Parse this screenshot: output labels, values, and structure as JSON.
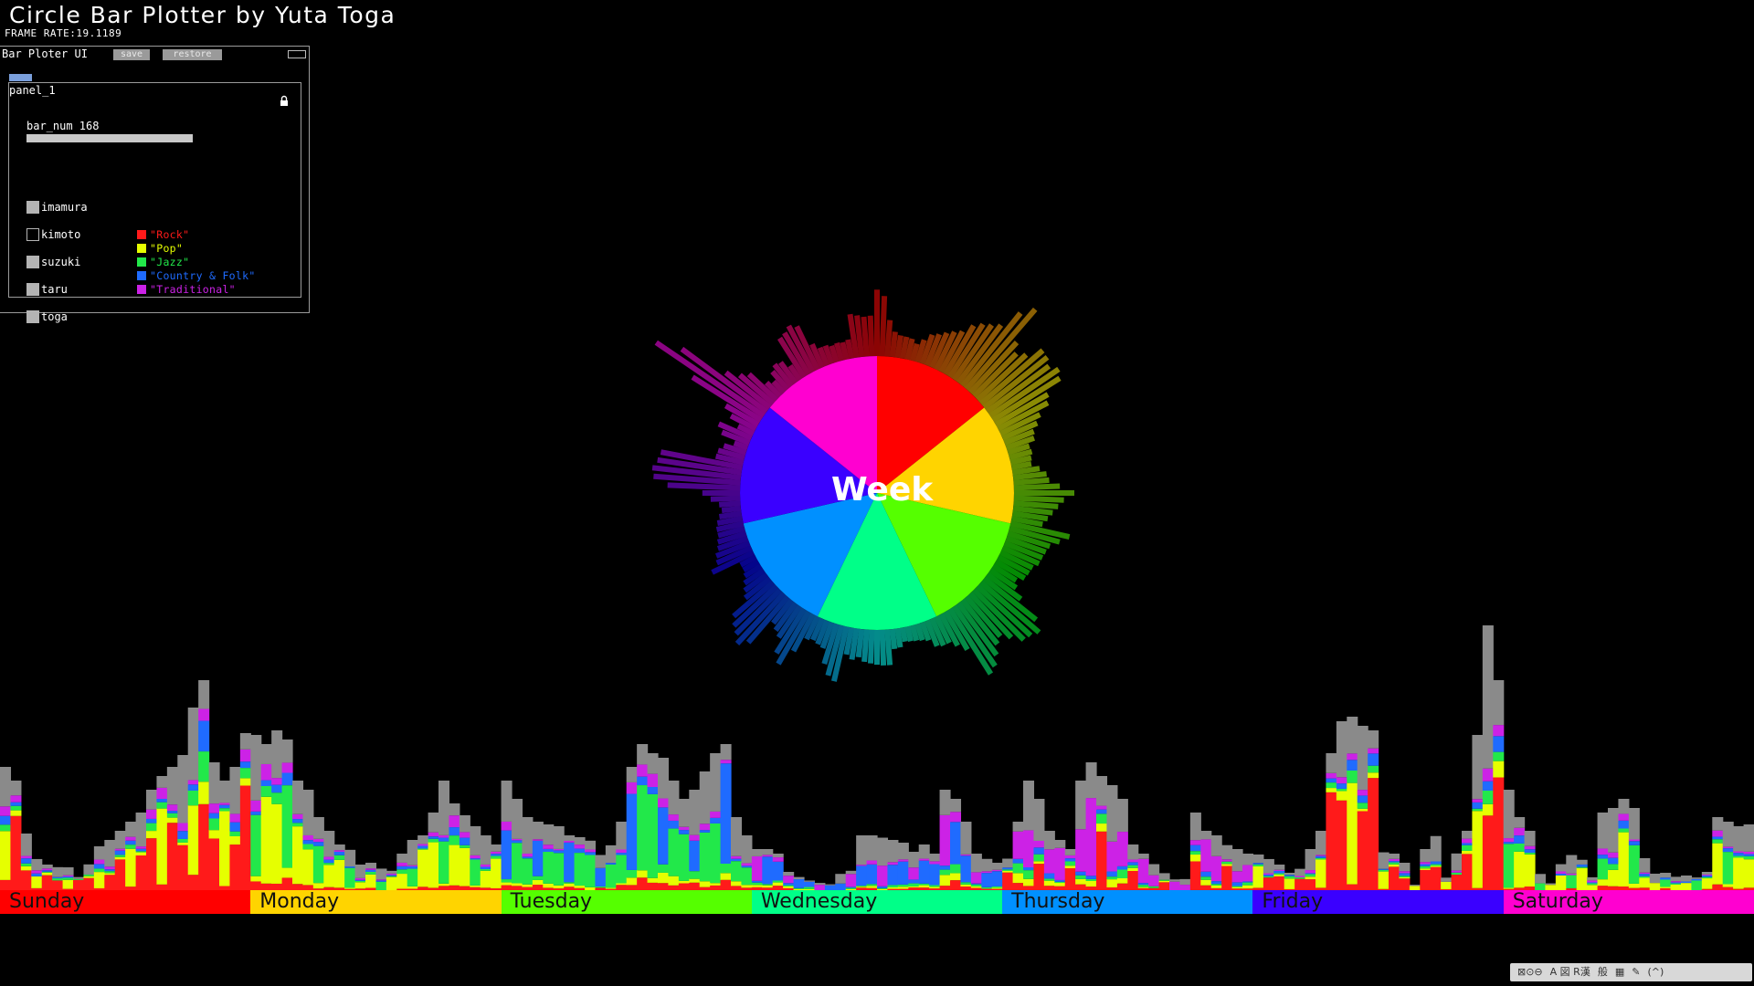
{
  "app": {
    "title": "Circle  Bar  Plotter  by  Yuta  Toga",
    "frame_rate": "FRAME RATE:19.1189"
  },
  "ui_window": {
    "title": "Bar Ploter UI",
    "save_label": "save",
    "restore_label": "restore",
    "panel": {
      "label": "panel_1",
      "slider_label": "bar_num 168",
      "slider_value": 168,
      "slider_fill_fraction": 1.0,
      "checkboxes": [
        {
          "label": "imamura",
          "checked": true
        },
        {
          "label": "kimoto",
          "checked": false
        },
        {
          "label": "suzuki",
          "checked": true
        },
        {
          "label": "taru",
          "checked": true
        },
        {
          "label": "toga",
          "checked": true
        }
      ],
      "legend": [
        {
          "label": "\"Rock\"",
          "color": "#ff1a1a"
        },
        {
          "label": "\"Pop\"",
          "color": "#e6ff00"
        },
        {
          "label": "\"Jazz\"",
          "color": "#22e84a"
        },
        {
          "label": "\"Country & Folk\"",
          "color": "#1f6bff"
        },
        {
          "label": "\"Traditional\"",
          "color": "#cc22e6"
        }
      ]
    }
  },
  "center_label": "Week",
  "days": [
    {
      "label": "Sunday",
      "color": "#ff0000"
    },
    {
      "label": "Monday",
      "color": "#ffd400"
    },
    {
      "label": "Tuesday",
      "color": "#55ff00"
    },
    {
      "label": "Wednesday",
      "color": "#00ff88"
    },
    {
      "label": "Thursday",
      "color": "#0090ff"
    },
    {
      "label": "Friday",
      "color": "#3a00ff"
    },
    {
      "label": "Saturday",
      "color": "#ff00d0"
    }
  ],
  "chart_data": {
    "type": "bar",
    "stacked": true,
    "x_unit": "hour of week",
    "bar_count": 168,
    "category_colors": {
      "Rock": "#ff1a1a",
      "Pop": "#e6ff00",
      "Jazz": "#22e84a",
      "Country & Folk": "#1f6bff",
      "Traditional": "#cc22e6",
      "Other": "#8a8a8a"
    },
    "totals": [
      135,
      120,
      62,
      35,
      28,
      27,
      25,
      16,
      30,
      48,
      55,
      65,
      75,
      85,
      110,
      125,
      135,
      148,
      200,
      230,
      140,
      120,
      135,
      172,
      170,
      160,
      175,
      165,
      120,
      110,
      80,
      65,
      50,
      45,
      28,
      30,
      25,
      22,
      40,
      55,
      60,
      85,
      120,
      95,
      82,
      70,
      60,
      50,
      120,
      100,
      80,
      75,
      72,
      70,
      60,
      58,
      55,
      40,
      50,
      75,
      135,
      160,
      150,
      145,
      120,
      100,
      110,
      130,
      150,
      160,
      80,
      60,
      45,
      45,
      40,
      20,
      15,
      12,
      10,
      8,
      20,
      22,
      60,
      60,
      58,
      55,
      52,
      42,
      50,
      40,
      110,
      100,
      75,
      40,
      35,
      30,
      35,
      75,
      120,
      100,
      65,
      55,
      45,
      120,
      140,
      125,
      115,
      100,
      50,
      40,
      30,
      20,
      15,
      15,
      85,
      65,
      60,
      50,
      45,
      40,
      40,
      35,
      28,
      20,
      25,
      45,
      65,
      150,
      185,
      190,
      180,
      175,
      42,
      40,
      30,
      8,
      45,
      60,
      15,
      42,
      65,
      170,
      290,
      230,
      110,
      80,
      65,
      20,
      10,
      30,
      40,
      35,
      15,
      85,
      90,
      100,
      90,
      35,
      20,
      20,
      15,
      18,
      16,
      20,
      80,
      75,
      70,
      72
    ]
  },
  "tray": {
    "items": [
      "⊠⊙⊖",
      "A 図 R漢",
      "般",
      "▦",
      "✎",
      "(^)"
    ]
  }
}
